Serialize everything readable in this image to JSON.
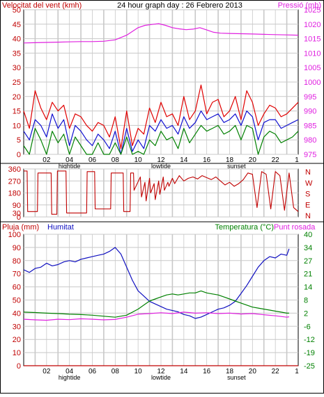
{
  "colors": {
    "background": "#ffffff",
    "plot_background": "#ffffff",
    "grid": "#c8c8c8",
    "frame": "#000000",
    "wind_avg": "#1010d0",
    "wind_gust": "#e00000",
    "wind_axis": "#c00000",
    "wind_min": "#008000",
    "pressure": "#e020e0",
    "direction": "#c00000",
    "humidity": "#1010c0",
    "humidity_label": "#1010c0",
    "temperature": "#008000",
    "dewpoint": "#e020e0",
    "rain": "#c00000",
    "tick_text": "#000000"
  },
  "panels": {
    "top": {
      "title": "24 hour graph day : 26 Febrero 2013",
      "left_label": "Velocitat del vent (kmh)",
      "right_label": "Pressió (mb)"
    },
    "middle": {
      "right_label_letters": [
        "N",
        "W",
        "S",
        "E",
        "N"
      ]
    },
    "bottom": {
      "left_label_rain": "Pluja (mm)",
      "left_label_humidity": "Humitat",
      "right_label_temp": "Temperatura (°C)",
      "right_label_dew": "Punt rosada"
    }
  },
  "x_axis": {
    "tick_labels": [
      "02",
      "04",
      "06",
      "08",
      "10",
      "12",
      "14",
      "16",
      "18",
      "20",
      "22",
      "1"
    ],
    "sub_labels": [
      {
        "text": "hightide",
        "at": 4
      },
      {
        "text": "lowtide",
        "at": 12
      },
      {
        "text": "sunset",
        "at": 18.6
      }
    ]
  },
  "chart_data": [
    {
      "type": "line",
      "name": "wind-pressure",
      "title": "24 hour graph day : 26 Febrero 2013",
      "xlabel": "",
      "ylabel": "Velocitat del vent (kmh)",
      "y2label": "Pressió (mb)",
      "xlim": [
        0,
        24
      ],
      "ylim": [
        0,
        50
      ],
      "y_ticks": [
        0,
        5,
        10,
        15,
        20,
        25,
        30,
        35,
        40,
        45,
        50
      ],
      "y2lim": [
        975,
        1025
      ],
      "y2_ticks": [
        975,
        980,
        985,
        990,
        995,
        1000,
        1005,
        1010,
        1015,
        1020,
        1025
      ],
      "grid": true,
      "series": [
        {
          "axis": "y2",
          "color_key": "pressure",
          "x": [
            0,
            1,
            2,
            3,
            4,
            5,
            6,
            7,
            8,
            9,
            10,
            10.6,
            11.2,
            11.8,
            12.4,
            13,
            13.6,
            14.2,
            14.8,
            15.4,
            16,
            16.6,
            17.2,
            18,
            19,
            20,
            21,
            22,
            23,
            24
          ],
          "values": [
            1013.5,
            1013.6,
            1013.7,
            1013.8,
            1013.9,
            1014.0,
            1014.0,
            1014.1,
            1014.6,
            1016.2,
            1018.8,
            1019.6,
            1019.9,
            1020.2,
            1019.6,
            1018.8,
            1018.4,
            1018.1,
            1018.3,
            1018.8,
            1018.0,
            1017.2,
            1016.9,
            1016.8,
            1016.7,
            1016.6,
            1016.5,
            1016.4,
            1016.3,
            1016.2
          ]
        },
        {
          "axis": "y",
          "color_key": "wind_gust",
          "x": [
            0,
            0.5,
            1,
            1.5,
            2,
            2.5,
            3,
            3.5,
            4,
            4.5,
            5,
            5.5,
            6,
            6.5,
            7,
            7.5,
            8,
            8.5,
            9,
            9.5,
            10,
            10.5,
            11,
            11.5,
            12,
            12.5,
            13,
            13.5,
            14,
            14.5,
            15,
            15.5,
            16,
            16.5,
            17,
            17.5,
            18,
            18.5,
            19,
            19.5,
            20,
            20.5,
            21,
            21.5,
            22,
            22.5,
            23,
            23.5,
            24
          ],
          "values": [
            15,
            9,
            22,
            16,
            12,
            18,
            15,
            17,
            9,
            14,
            13,
            10,
            8,
            11,
            10,
            6,
            13,
            2,
            15,
            3,
            9,
            7,
            16,
            11,
            18,
            13,
            14,
            10,
            20,
            12,
            15,
            24,
            14,
            18,
            19,
            13,
            15,
            20,
            12,
            22,
            18,
            10,
            14,
            17,
            16,
            13,
            14,
            16,
            18
          ]
        },
        {
          "axis": "y",
          "color_key": "wind_avg",
          "x": [
            0,
            0.5,
            1,
            1.5,
            2,
            2.5,
            3,
            3.5,
            4,
            4.5,
            5,
            5.5,
            6,
            6.5,
            7,
            7.5,
            8,
            8.5,
            9,
            9.5,
            10,
            10.5,
            11,
            11.5,
            12,
            12.5,
            13,
            13.5,
            14,
            14.5,
            15,
            15.5,
            16,
            16.5,
            17,
            17.5,
            18,
            18.5,
            19,
            19.5,
            20,
            20.5,
            21,
            21.5,
            22,
            22.5,
            23,
            23.5,
            24
          ],
          "values": [
            8,
            5,
            12,
            10,
            6,
            14,
            9,
            12,
            3,
            10,
            8,
            5,
            3,
            7,
            5,
            2,
            8,
            0,
            9,
            1,
            5,
            2,
            10,
            8,
            12,
            9,
            10,
            7,
            13,
            9,
            11,
            15,
            12,
            13,
            14,
            11,
            12,
            14,
            10,
            15,
            13,
            5,
            11,
            12,
            12,
            9,
            10,
            11,
            12
          ]
        },
        {
          "axis": "y",
          "color_key": "wind_min",
          "x": [
            0,
            0.5,
            1,
            1.5,
            2,
            2.5,
            3,
            3.5,
            4,
            4.5,
            5,
            5.5,
            6,
            6.5,
            7,
            7.5,
            8,
            8.5,
            9,
            9.5,
            10,
            10.5,
            11,
            11.5,
            12,
            12.5,
            13,
            13.5,
            14,
            14.5,
            15,
            15.5,
            16,
            16.5,
            17,
            17.5,
            18,
            18.5,
            19,
            19.5,
            20,
            20.5,
            21,
            21.5,
            22,
            22.5,
            23,
            23.5,
            24
          ],
          "values": [
            3,
            0,
            9,
            5,
            0,
            8,
            4,
            7,
            0,
            6,
            3,
            0,
            0,
            4,
            0,
            0,
            4,
            0,
            6,
            0,
            1,
            0,
            5,
            3,
            8,
            5,
            6,
            2,
            9,
            4,
            7,
            10,
            8,
            9,
            10,
            7,
            8,
            10,
            5,
            10,
            9,
            0,
            6,
            8,
            7,
            4,
            5,
            6,
            8
          ]
        }
      ]
    },
    {
      "type": "line",
      "name": "wind-direction",
      "xlim": [
        0,
        24
      ],
      "ylim": [
        0,
        360
      ],
      "y_ticks": [
        0,
        90,
        180,
        270,
        360
      ],
      "extra_left_labels": [
        {
          "value": 30,
          "text": "30"
        }
      ],
      "grid": true,
      "series": [
        {
          "color_key": "direction",
          "x": [
            0,
            0.3,
            0.35,
            1.2,
            1.25,
            2.4,
            2.45,
            2.9,
            2.95,
            3.7,
            3.75,
            5.5,
            5.55,
            6.2,
            6.25,
            7.6,
            7.65,
            8.7,
            8.75,
            9.3,
            9.35,
            9.6,
            9.65,
            10.2,
            10.3,
            10.6,
            10.7,
            11.0,
            11.1,
            11.4,
            11.5,
            11.8,
            11.9,
            12.2,
            12.3,
            12.6,
            12.7,
            13.0,
            13.2,
            13.6,
            14.0,
            14.4,
            14.8,
            15.2,
            15.6,
            16.0,
            16.4,
            16.8,
            17.2,
            17.6,
            18.0,
            18.4,
            18.8,
            19.2,
            19.6,
            20.0,
            20.4,
            20.8,
            21.2,
            21.6,
            22.0,
            22.4,
            22.8,
            23.2,
            23.6,
            24
          ],
          "values": [
            345,
            345,
            40,
            40,
            330,
            330,
            20,
            20,
            345,
            345,
            30,
            30,
            340,
            340,
            60,
            60,
            330,
            330,
            40,
            40,
            330,
            330,
            200,
            300,
            150,
            260,
            120,
            290,
            180,
            250,
            130,
            270,
            170,
            300,
            200,
            260,
            230,
            290,
            250,
            310,
            270,
            290,
            300,
            285,
            310,
            295,
            280,
            300,
            270,
            240,
            260,
            230,
            250,
            280,
            330,
            320,
            70,
            340,
            320,
            60,
            340,
            310,
            50,
            330,
            70,
            40
          ]
        }
      ]
    },
    {
      "type": "line",
      "name": "humidity-temperature",
      "xlabel": "",
      "ylabel": "Pluja (mm)",
      "y2label": "Temperatura (°C)",
      "xlim": [
        0,
        24
      ],
      "ylim": [
        0,
        100
      ],
      "y_ticks": [
        0,
        10,
        20,
        30,
        40,
        50,
        60,
        70,
        80,
        90,
        100
      ],
      "y2_ticks": [
        40,
        34,
        27,
        21,
        14,
        8,
        2,
        -6,
        -12,
        -19,
        -25
      ],
      "y2lim": [
        -25,
        40
      ],
      "grid": true,
      "series": [
        {
          "axis": "y",
          "color_key": "humidity",
          "name": "Humitat",
          "x": [
            0,
            0.5,
            1,
            1.5,
            2,
            2.5,
            3,
            3.5,
            4,
            4.5,
            5,
            5.5,
            6,
            6.5,
            7,
            7.5,
            8,
            8.5,
            9,
            9.5,
            10,
            10.5,
            11,
            11.5,
            12,
            12.5,
            13,
            13.5,
            14,
            14.5,
            15,
            15.5,
            16,
            16.5,
            17,
            17.5,
            18,
            18.5,
            19,
            19.5,
            20,
            20.5,
            21,
            21.5,
            22,
            22.5,
            23,
            23.2
          ],
          "values": [
            73,
            71,
            74,
            75,
            78,
            76,
            77,
            79,
            80,
            79,
            81,
            82,
            83,
            84,
            85,
            87,
            90,
            85,
            75,
            65,
            57,
            53,
            49,
            47,
            45,
            43,
            42,
            41,
            39,
            38,
            36,
            37,
            39,
            41,
            43,
            44,
            46,
            49,
            55,
            61,
            68,
            75,
            80,
            83,
            82,
            85,
            84,
            89
          ]
        },
        {
          "axis": "y2",
          "color_key": "temperature",
          "name": "Temperatura",
          "x": [
            0,
            1,
            2,
            3,
            4,
            5,
            6,
            7,
            8,
            9,
            10,
            10.5,
            11,
            11.5,
            12,
            12.5,
            13,
            13.5,
            14,
            14.5,
            15,
            15.5,
            16,
            16.5,
            17,
            17.5,
            18,
            18.5,
            19,
            19.5,
            20,
            20.5,
            21,
            21.5,
            22,
            22.5,
            23,
            23.2
          ],
          "values": [
            1.5,
            1.3,
            1.0,
            0.8,
            0.5,
            0.3,
            0.0,
            -0.5,
            -1.0,
            0.0,
            3.0,
            5.0,
            7.0,
            8.0,
            9.0,
            10.0,
            10.5,
            10.0,
            10.5,
            11.0,
            11.0,
            12.0,
            11.0,
            10.5,
            10.0,
            9.0,
            8.0,
            7.0,
            6.0,
            5.0,
            4.0,
            3.5,
            3.0,
            2.5,
            2.0,
            1.5,
            1.0,
            1.0
          ]
        },
        {
          "axis": "y2",
          "color_key": "dewpoint",
          "name": "Punt rosada",
          "x": [
            0,
            1,
            2,
            3,
            4,
            5,
            6,
            7,
            8,
            9,
            10,
            11,
            12,
            13,
            14,
            15,
            16,
            17,
            18,
            19,
            20,
            21,
            22,
            23,
            23.2
          ],
          "values": [
            -2.0,
            -2.3,
            -2.5,
            -2.0,
            -2.2,
            -1.8,
            -2.0,
            -2.3,
            -2.1,
            -1.0,
            0.5,
            0.8,
            1.2,
            0.8,
            1.5,
            1.0,
            1.2,
            0.8,
            1.0,
            0.6,
            0.8,
            0.2,
            -0.3,
            -1.0,
            -0.8
          ]
        },
        {
          "axis": "y",
          "color_key": "rain",
          "name": "Pluja",
          "x": [
            0,
            24
          ],
          "values": [
            0,
            0
          ]
        }
      ]
    }
  ]
}
